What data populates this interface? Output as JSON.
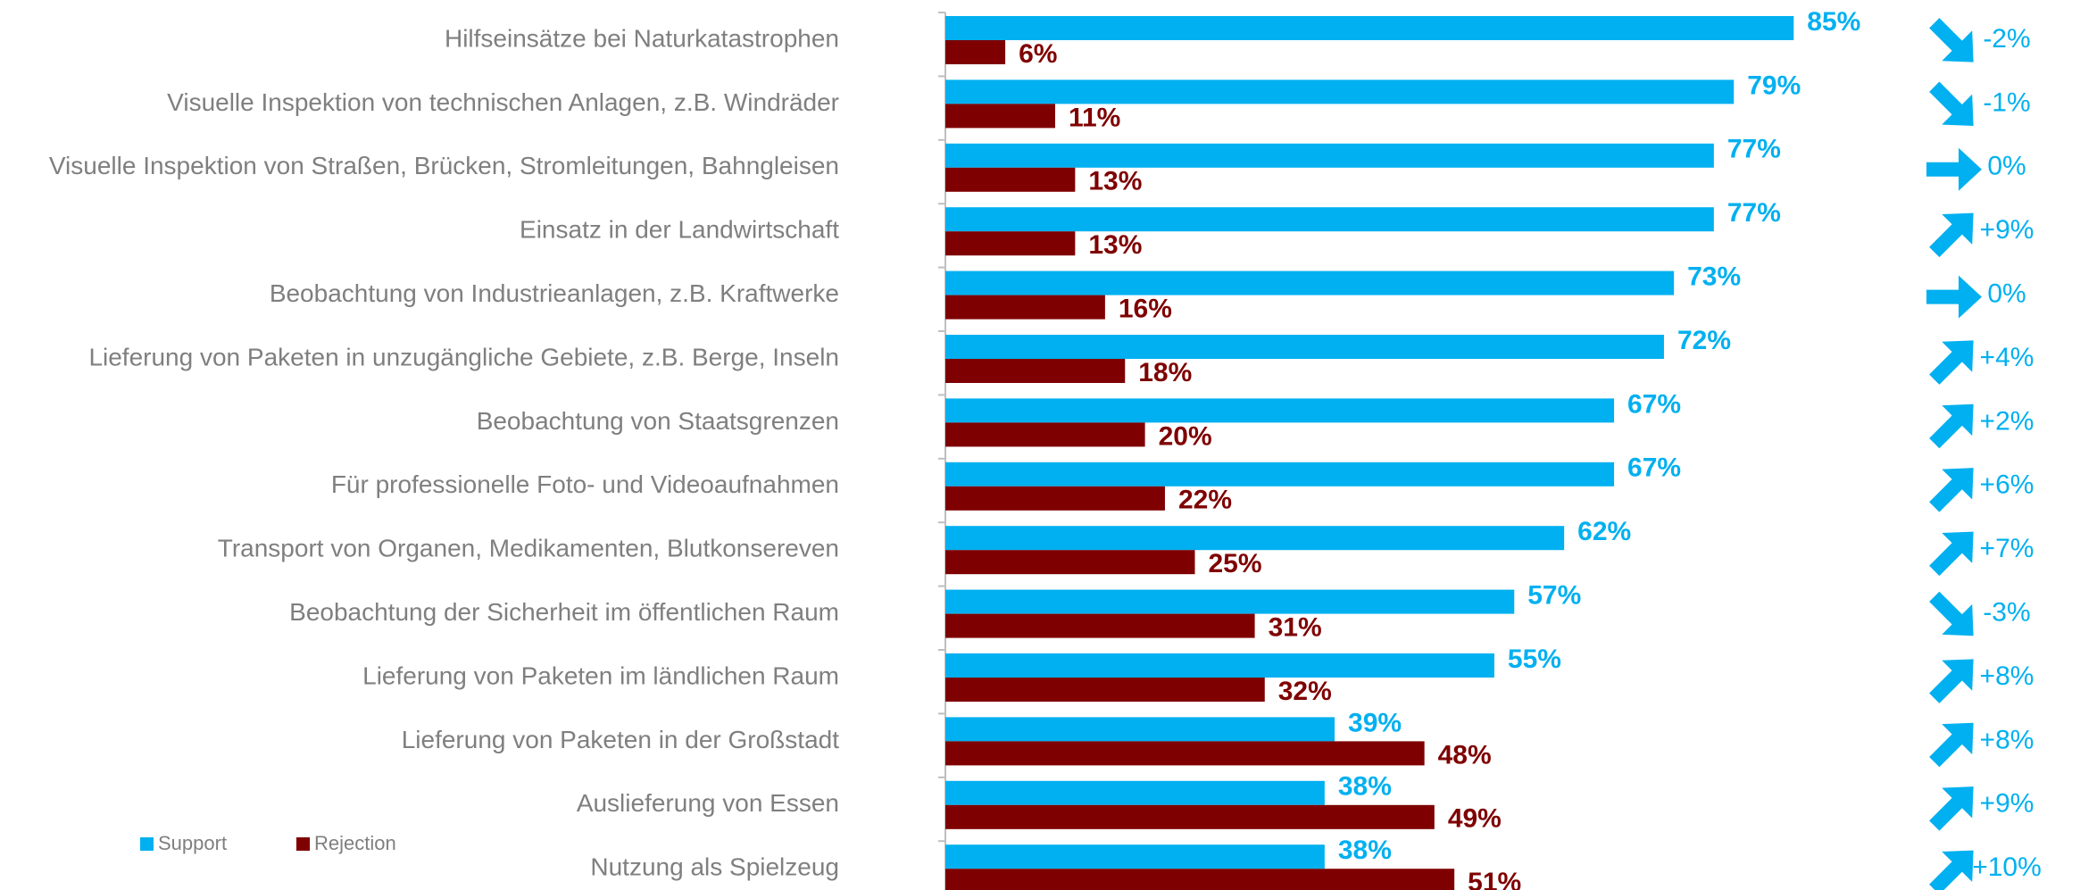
{
  "chart_data": {
    "type": "hbar",
    "categories": [
      "Hilfseinsätze bei Naturkatastrophen",
      "Visuelle Inspektion von technischen Anlagen, z.B. Windräder",
      "Visuelle Inspektion von Straßen, Brücken, Stromleitungen, Bahngleisen",
      "Einsatz in der Landwirtschaft",
      "Beobachtung von Industrieanlagen, z.B. Kraftwerke",
      "Lieferung von Paketen in unzugängliche Gebiete, z.B. Berge, Inseln",
      "Beobachtung von Staatsgrenzen",
      "Für professionelle Foto- und Videoaufnahmen",
      "Transport von Organen, Medikamenten, Blutkonsereven",
      "Beobachtung der Sicherheit im öffentlichen Raum",
      "Lieferung von Paketen im ländlichen Raum",
      "Lieferung von Paketen in der Großstadt",
      "Auslieferung von Essen",
      "Nutzung als Spielzeug"
    ],
    "series": [
      {
        "name": "Support",
        "color": "#00b0f0",
        "values": [
          85,
          79,
          77,
          77,
          73,
          72,
          67,
          67,
          62,
          57,
          55,
          39,
          38,
          38
        ],
        "value_labels": [
          "85%",
          "79%",
          "77%",
          "77%",
          "73%",
          "72%",
          "67%",
          "67%",
          "62%",
          "57%",
          "55%",
          "39%",
          "38%",
          "38%"
        ]
      },
      {
        "name": "Rejection",
        "color": "#7f0000",
        "values": [
          6,
          11,
          13,
          13,
          16,
          18,
          20,
          22,
          25,
          31,
          32,
          48,
          49,
          51
        ],
        "value_labels": [
          "6%",
          "11%",
          "13%",
          "13%",
          "16%",
          "18%",
          "20%",
          "22%",
          "25%",
          "31%",
          "32%",
          "48%",
          "49%",
          "51%"
        ]
      }
    ],
    "changes": {
      "color": "#00b0f0",
      "values": [
        -2,
        -1,
        0,
        9,
        0,
        4,
        2,
        6,
        7,
        -3,
        8,
        8,
        9,
        10
      ],
      "value_labels": [
        "-2%",
        "-1%",
        "0%",
        "+9%",
        "0%",
        "+4%",
        "+2%",
        "+6%",
        "+7%",
        "-3%",
        "+8%",
        "+8%",
        "+9%",
        "+10%"
      ]
    },
    "xlim": [
      0,
      100
    ],
    "legend": "bottom-left"
  }
}
